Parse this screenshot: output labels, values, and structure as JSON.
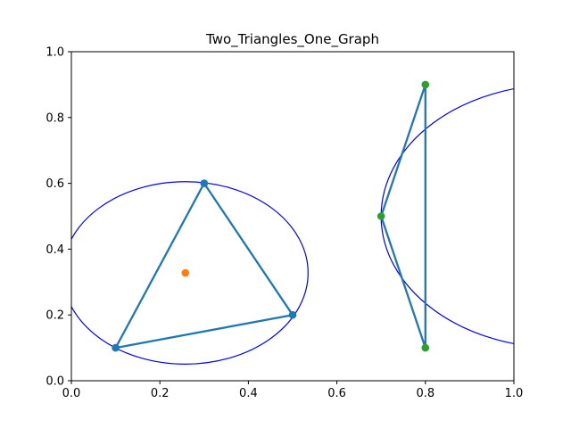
{
  "chart_data": {
    "type": "scatter",
    "title": "Two_Triangles_One_Graph",
    "xlabel": "",
    "ylabel": "",
    "xlim": [
      0.0,
      1.0
    ],
    "ylim": [
      0.0,
      1.0
    ],
    "grid": false,
    "x_ticks": [
      "0.0",
      "0.2",
      "0.4",
      "0.6",
      "0.8",
      "1.0"
    ],
    "y_ticks": [
      "0.0",
      "0.2",
      "0.4",
      "0.6",
      "0.8",
      "1.0"
    ],
    "triangles": [
      {
        "vertices": [
          [
            0.1,
            0.1
          ],
          [
            0.3,
            0.6
          ],
          [
            0.5,
            0.2
          ]
        ],
        "line_color": "#1f77b4",
        "point_color": "#1f77b4"
      },
      {
        "vertices": [
          [
            0.7,
            0.5
          ],
          [
            0.8,
            0.9
          ],
          [
            0.8,
            0.1
          ]
        ],
        "line_color": "#1f77b4",
        "point_color": "#2ca02c"
      }
    ],
    "circumcircles": [
      {
        "center": [
          0.2576,
          0.3278
        ],
        "radius_x": 0.2773,
        "radius_y": 0.2773,
        "color": "#0000ff"
      },
      {
        "center": [
          1.1,
          0.5
        ],
        "radius_x": 0.4,
        "radius_y": 0.4,
        "color": "#0000ff"
      }
    ],
    "extra_points": [
      {
        "x": 0.2576,
        "y": 0.3278,
        "color": "#ff7f0e"
      }
    ]
  }
}
